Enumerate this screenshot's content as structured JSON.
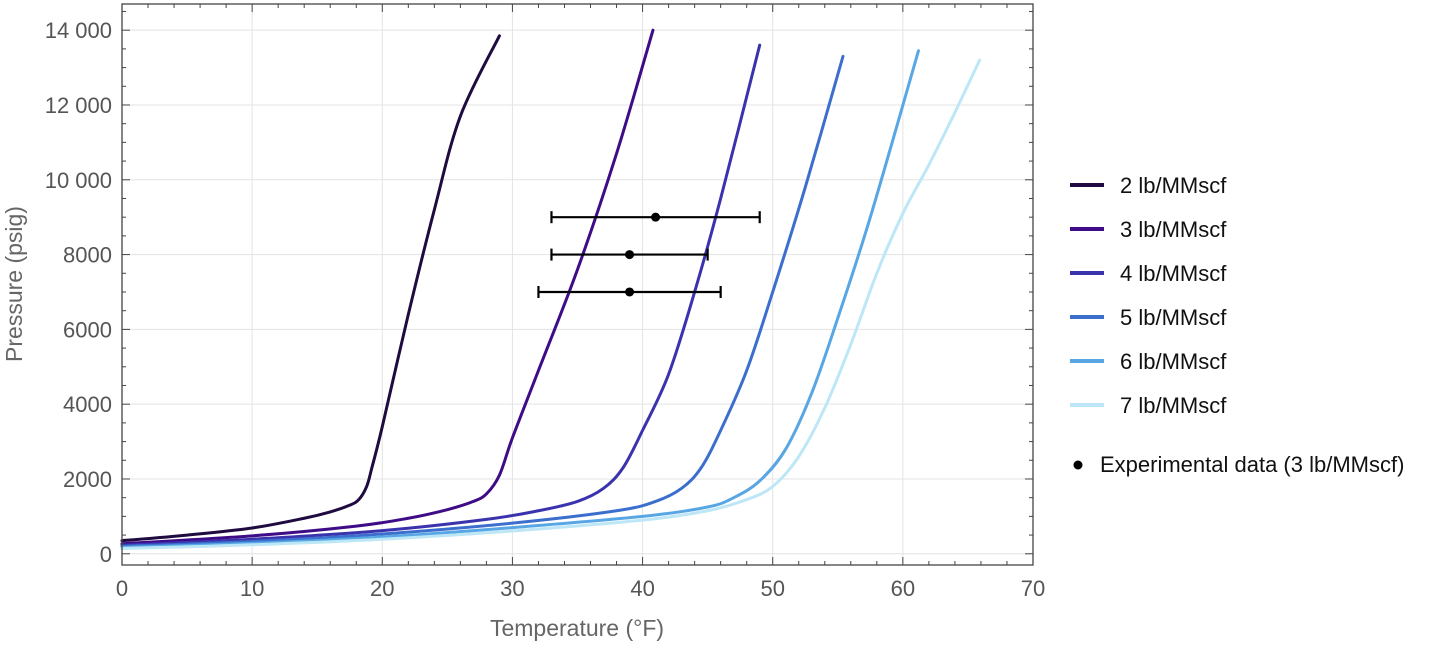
{
  "chart_data": {
    "type": "line",
    "title": "",
    "xlabel": "Temperature (°F)",
    "ylabel": "Pressure (psig)",
    "xlim": [
      0,
      70
    ],
    "ylim": [
      -300,
      14700
    ],
    "grid": true,
    "legend_position": "right",
    "x_ticks": [
      {
        "value": 0,
        "label": "0"
      },
      {
        "value": 10,
        "label": "10"
      },
      {
        "value": 20,
        "label": "20"
      },
      {
        "value": 30,
        "label": "30"
      },
      {
        "value": 40,
        "label": "40"
      },
      {
        "value": 50,
        "label": "50"
      },
      {
        "value": 60,
        "label": "60"
      },
      {
        "value": 70,
        "label": "70"
      }
    ],
    "y_ticks": [
      {
        "value": 0,
        "label": "0"
      },
      {
        "value": 2000,
        "label": "2000"
      },
      {
        "value": 4000,
        "label": "4000"
      },
      {
        "value": 6000,
        "label": "6000"
      },
      {
        "value": 8000,
        "label": "8000"
      },
      {
        "value": 10000,
        "label": "10 000"
      },
      {
        "value": 12000,
        "label": "12 000"
      },
      {
        "value": 14000,
        "label": "14 000"
      }
    ],
    "series": [
      {
        "name": "2 lb/MMscf",
        "color": "#1f0b3f",
        "points": [
          [
            0,
            350
          ],
          [
            5,
            500
          ],
          [
            10,
            690
          ],
          [
            14,
            950
          ],
          [
            16,
            1120
          ],
          [
            17.5,
            1300
          ],
          [
            18.2,
            1450
          ],
          [
            18.8,
            1800
          ],
          [
            19.2,
            2300
          ],
          [
            20,
            3400
          ],
          [
            22,
            6400
          ],
          [
            24,
            9200
          ],
          [
            26,
            11700
          ],
          [
            29,
            13850
          ]
        ]
      },
      {
        "name": "3 lb/MMscf",
        "color": "#3e0c86",
        "points": [
          [
            0,
            270
          ],
          [
            10,
            480
          ],
          [
            18,
            740
          ],
          [
            22,
            950
          ],
          [
            25,
            1180
          ],
          [
            27,
            1400
          ],
          [
            28,
            1600
          ],
          [
            29,
            2100
          ],
          [
            30,
            3100
          ],
          [
            32,
            4900
          ],
          [
            35,
            7600
          ],
          [
            38,
            10700
          ],
          [
            40.8,
            14000
          ]
        ]
      },
      {
        "name": "4 lb/MMscf",
        "color": "#3a33ad",
        "points": [
          [
            0,
            230
          ],
          [
            10,
            390
          ],
          [
            20,
            620
          ],
          [
            28,
            920
          ],
          [
            32,
            1150
          ],
          [
            35,
            1400
          ],
          [
            37,
            1750
          ],
          [
            38.5,
            2300
          ],
          [
            40,
            3300
          ],
          [
            42,
            4800
          ],
          [
            44,
            7000
          ],
          [
            46,
            9500
          ],
          [
            49,
            13600
          ]
        ]
      },
      {
        "name": "5 lb/MMscf",
        "color": "#3c6fcd",
        "points": [
          [
            0,
            200
          ],
          [
            10,
            330
          ],
          [
            20,
            530
          ],
          [
            30,
            820
          ],
          [
            38,
            1150
          ],
          [
            41,
            1400
          ],
          [
            43,
            1750
          ],
          [
            44.5,
            2300
          ],
          [
            46,
            3300
          ],
          [
            48,
            4900
          ],
          [
            50,
            7000
          ],
          [
            52.5,
            9800
          ],
          [
            55.4,
            13300
          ]
        ]
      },
      {
        "name": "6 lb/MMscf",
        "color": "#58a6e4",
        "points": [
          [
            0,
            170
          ],
          [
            10,
            280
          ],
          [
            20,
            450
          ],
          [
            30,
            700
          ],
          [
            40,
            1000
          ],
          [
            45,
            1250
          ],
          [
            47,
            1500
          ],
          [
            49,
            1950
          ],
          [
            51,
            2800
          ],
          [
            53,
            4300
          ],
          [
            55,
            6300
          ],
          [
            57.5,
            9000
          ],
          [
            61.2,
            13450
          ]
        ]
      },
      {
        "name": "7 lb/MMscf",
        "color": "#bde7f7",
        "points": [
          [
            0,
            140
          ],
          [
            10,
            240
          ],
          [
            20,
            390
          ],
          [
            30,
            610
          ],
          [
            40,
            900
          ],
          [
            45,
            1150
          ],
          [
            48,
            1450
          ],
          [
            50,
            1800
          ],
          [
            52,
            2600
          ],
          [
            54,
            3900
          ],
          [
            56,
            5600
          ],
          [
            58,
            7500
          ],
          [
            60,
            9100
          ],
          [
            62,
            10400
          ],
          [
            64,
            11800
          ],
          [
            65.9,
            13200
          ]
        ]
      }
    ],
    "experimental_data": {
      "name": "Experimental data (3 lb/MMscf)",
      "color": "#000000",
      "points": [
        {
          "x": 41,
          "y": 9000,
          "x_low": 33,
          "x_high": 49
        },
        {
          "x": 39,
          "y": 8000,
          "x_low": 33,
          "x_high": 45
        },
        {
          "x": 39,
          "y": 7000,
          "x_low": 32,
          "x_high": 46
        }
      ]
    }
  }
}
